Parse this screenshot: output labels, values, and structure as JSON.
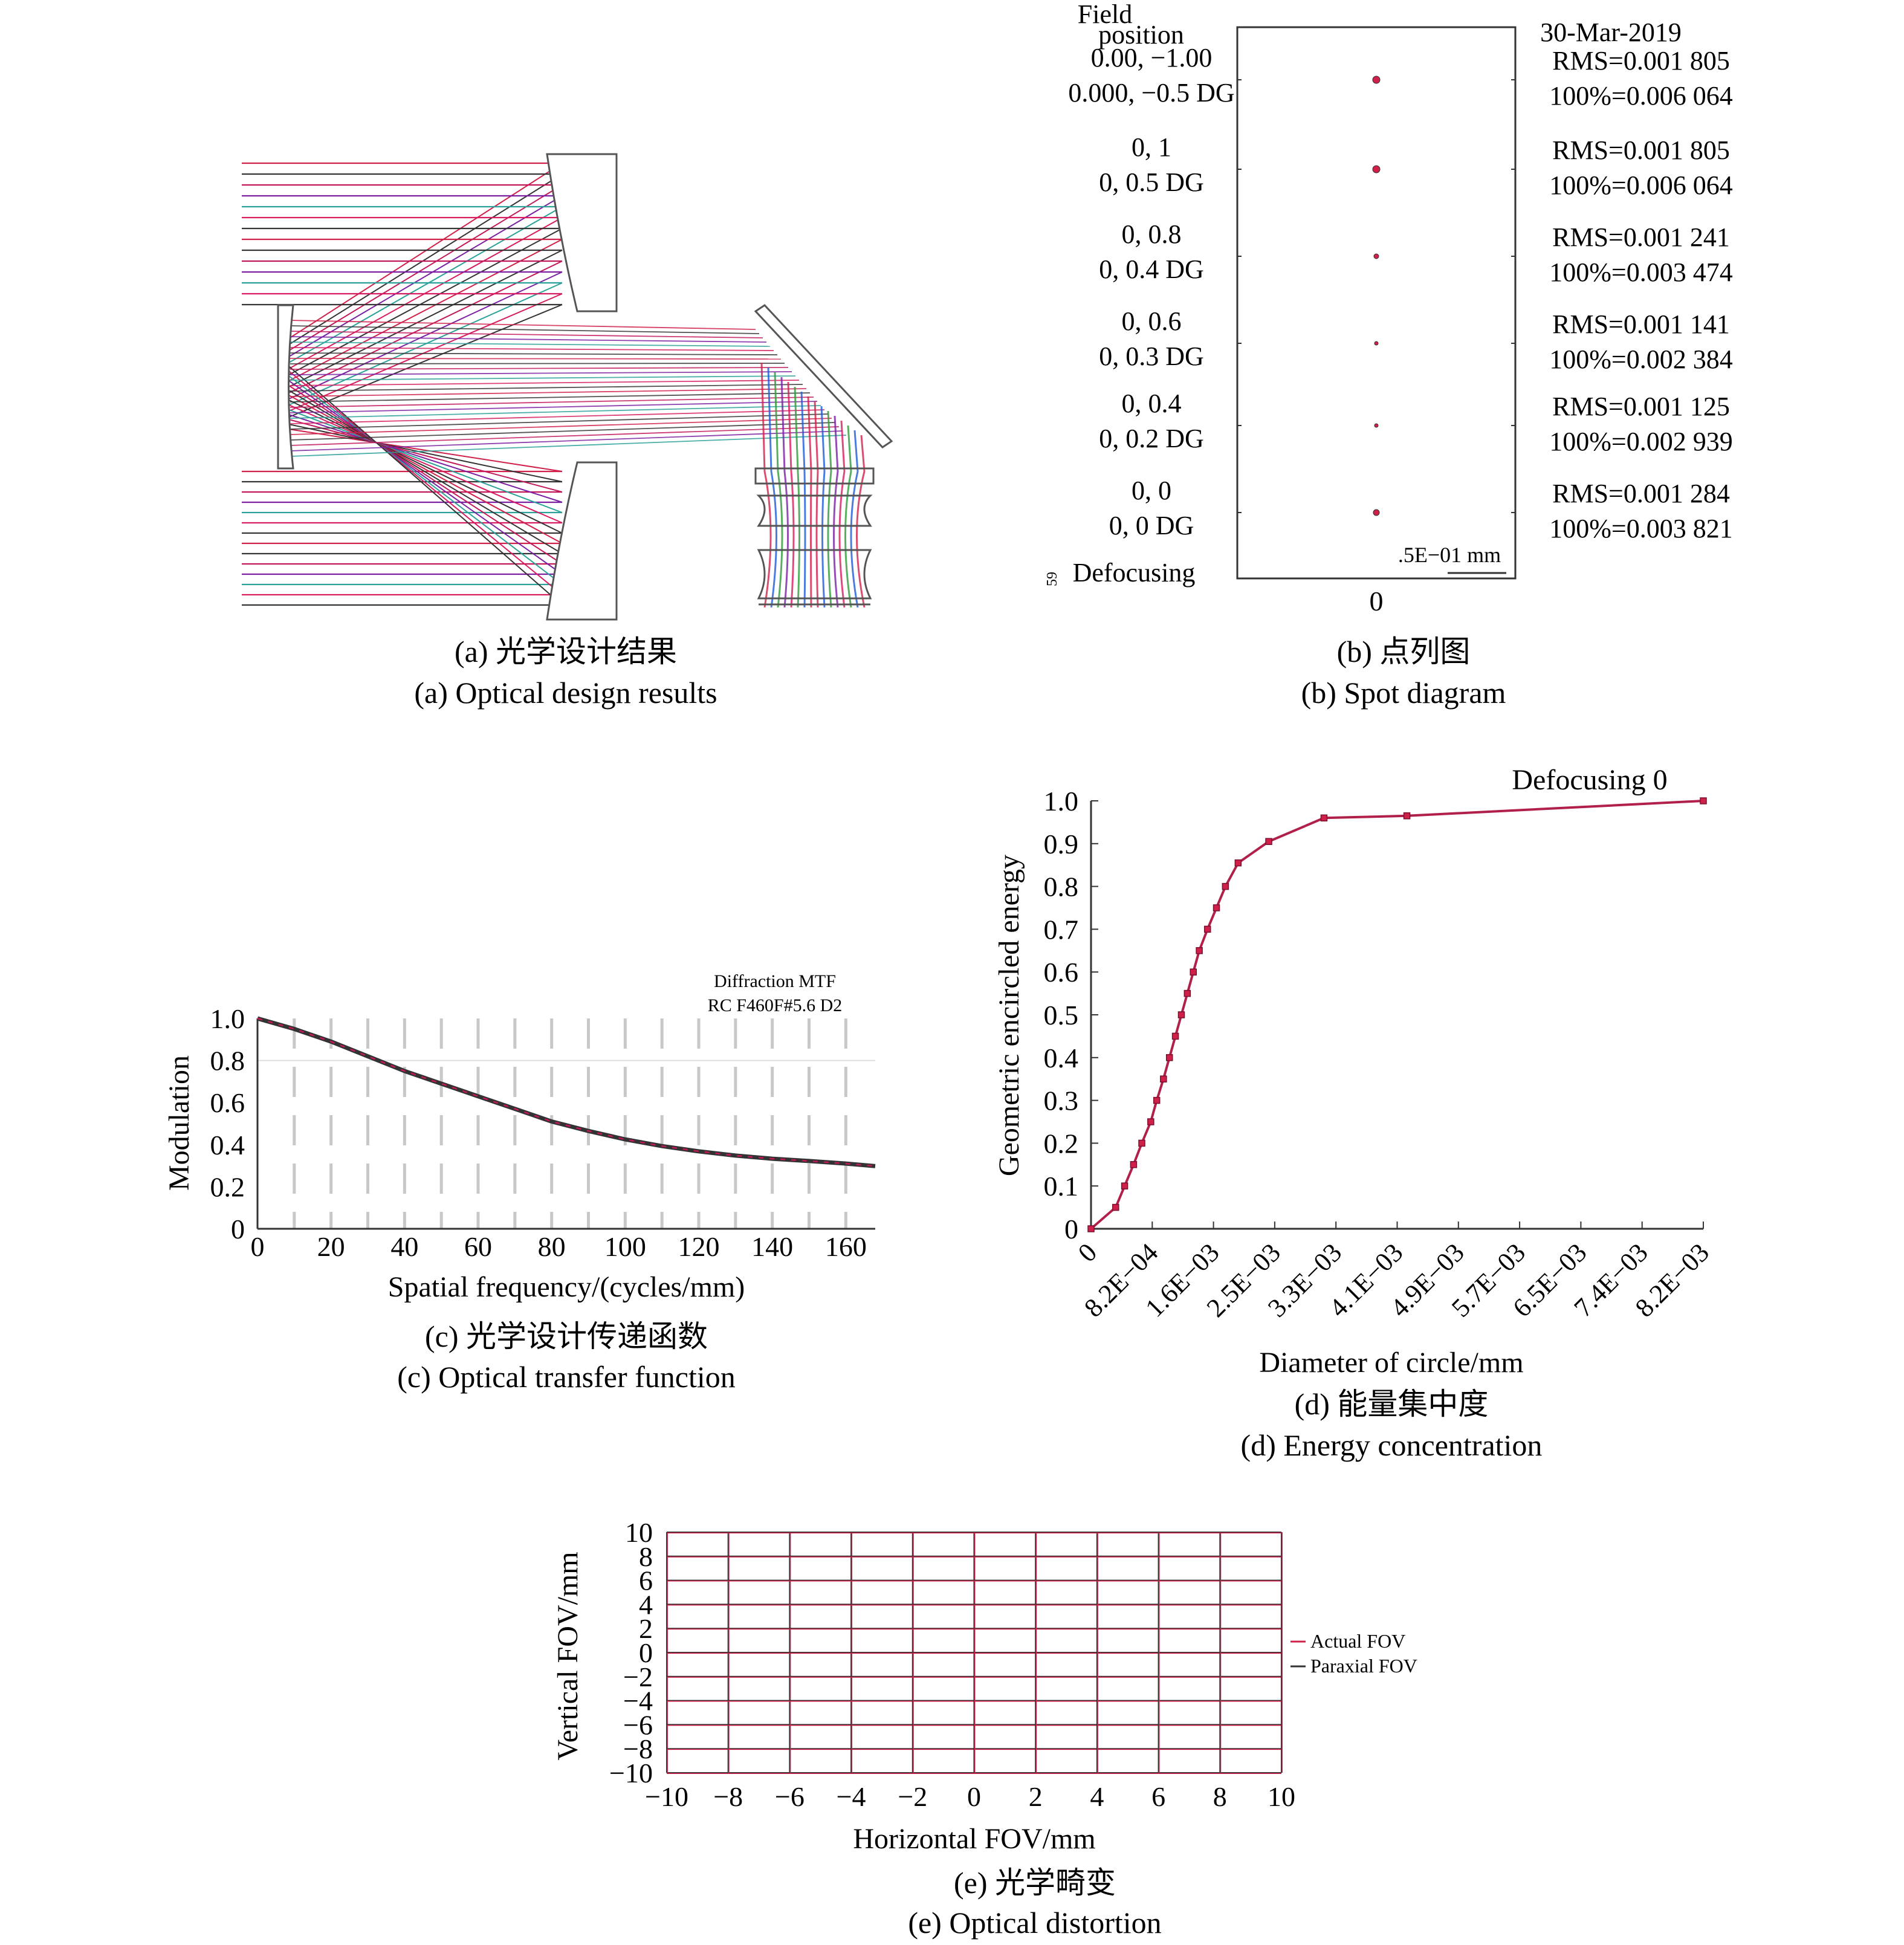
{
  "colors": {
    "red": "#d0204a",
    "crimson": "#c2185b",
    "dark": "#333333",
    "grid": "#c8c8c8",
    "purple": "#7b1fa2",
    "blue": "#1e5bd6",
    "green": "#2e9a3a",
    "teal": "#2aa198",
    "magenta": "#d81b60"
  },
  "captions": {
    "a_cn": "(a) 光学设计结果",
    "a_en": "(a) Optical design results",
    "b_cn": "(b) 点列图",
    "b_en": "(b) Spot diagram",
    "c_cn": "(c) 光学设计传递函数",
    "c_en": "(c) Optical transfer function",
    "d_cn": "(d) 能量集中度",
    "d_en": "(d) Energy concentration",
    "e_cn": "(e) 光学畸变",
    "e_en": "(e) Optical distortion"
  },
  "chart_data": [
    {
      "panel": "b",
      "type": "scatter",
      "header_line1": "Field",
      "header_line2": "position",
      "date": "30-Mar-2019",
      "scale_label": ".5E−01 mm",
      "x_tick": "0",
      "defocus_num": "59",
      "defocus_label": "Defocusing",
      "rows": [
        {
          "pos": "0.00, −1.00",
          "deg": "0.000, −0.5 DG",
          "rms": "RMS=0.001 805",
          "geo": "100%=0.006 064"
        },
        {
          "pos": "0, 1",
          "deg": "0, 0.5 DG",
          "rms": "RMS=0.001 805",
          "geo": "100%=0.006 064"
        },
        {
          "pos": "0, 0.8",
          "deg": "0, 0.4 DG",
          "rms": "RMS=0.001 241",
          "geo": "100%=0.003 474"
        },
        {
          "pos": "0, 0.6",
          "deg": "0, 0.3 DG",
          "rms": "RMS=0.001 141",
          "geo": "100%=0.002 384"
        },
        {
          "pos": "0, 0.4",
          "deg": "0, 0.2 DG",
          "rms": "RMS=0.001 125",
          "geo": "100%=0.002 939"
        },
        {
          "pos": "0, 0",
          "deg": "0, 0 DG",
          "rms": "RMS=0.001 284",
          "geo": "100%=0.003 821"
        }
      ]
    },
    {
      "panel": "c",
      "type": "line",
      "annotation1": "Diffraction MTF",
      "annotation2": "RC F460F#5.6 D2",
      "xlabel": "Spatial frequency/(cycles/mm)",
      "ylabel": "Modulation",
      "xlim": [
        0,
        168
      ],
      "ylim": [
        0,
        1.0
      ],
      "xticks": [
        "0",
        "20",
        "40",
        "60",
        "80",
        "100",
        "120",
        "140",
        "160"
      ],
      "yticks": [
        "0",
        "0.2",
        "0.4",
        "0.6",
        "0.8",
        "1.0"
      ],
      "x": [
        0,
        10,
        20,
        30,
        40,
        50,
        60,
        70,
        80,
        90,
        100,
        110,
        120,
        130,
        140,
        150,
        160,
        168
      ],
      "y": [
        1.0,
        0.95,
        0.89,
        0.82,
        0.75,
        0.69,
        0.63,
        0.57,
        0.51,
        0.465,
        0.425,
        0.393,
        0.368,
        0.348,
        0.333,
        0.322,
        0.31,
        0.298
      ]
    },
    {
      "panel": "d",
      "type": "line",
      "legend": "Defocusing 0",
      "xlabel": "Diameter of circle/mm",
      "ylabel": "Geometric encircled energy",
      "xlim": [
        0,
        0.0082
      ],
      "ylim": [
        0,
        1.0
      ],
      "xticks": [
        "0",
        "8.2E−04",
        "1.6E−03",
        "2.5E−03",
        "3.3E−03",
        "4.1E−03",
        "4.9E−03",
        "5.7E−03",
        "6.5E−03",
        "7.4E−03",
        "8.2E−03"
      ],
      "yticks": [
        "0",
        "0.1",
        "0.2",
        "0.3",
        "0.4",
        "0.5",
        "0.6",
        "0.7",
        "0.8",
        "0.9",
        "1.0"
      ],
      "x": [
        0,
        0.00033,
        0.00045,
        0.00057,
        0.00068,
        0.0008,
        0.00088,
        0.00097,
        0.00105,
        0.00113,
        0.00121,
        0.00129,
        0.00137,
        0.00145,
        0.00156,
        0.00168,
        0.0018,
        0.00197,
        0.00238,
        0.00312,
        0.00423,
        0.0082
      ],
      "y": [
        0,
        0.05,
        0.1,
        0.15,
        0.2,
        0.25,
        0.3,
        0.35,
        0.4,
        0.45,
        0.5,
        0.55,
        0.6,
        0.65,
        0.7,
        0.75,
        0.8,
        0.855,
        0.905,
        0.96,
        0.965,
        1.0
      ]
    },
    {
      "panel": "e",
      "type": "line",
      "xlabel": "Horizontal FOV/mm",
      "ylabel": "Vertical FOV/mm",
      "xlim": [
        -10,
        10
      ],
      "ylim": [
        -10,
        10
      ],
      "xticks": [
        "−10",
        "−8",
        "−6",
        "−4",
        "−2",
        "0",
        "2",
        "4",
        "6",
        "8",
        "10"
      ],
      "yticks": [
        "−10",
        "−8",
        "−6",
        "−4",
        "−2",
        "0",
        "2",
        "4",
        "6",
        "8",
        "10"
      ],
      "series": [
        {
          "name": "Actual FOV"
        },
        {
          "name": "Paraxial FOV"
        }
      ],
      "grid_values": [
        -10,
        -8,
        -6,
        -4,
        -2,
        0,
        2,
        4,
        6,
        8,
        10
      ]
    }
  ]
}
